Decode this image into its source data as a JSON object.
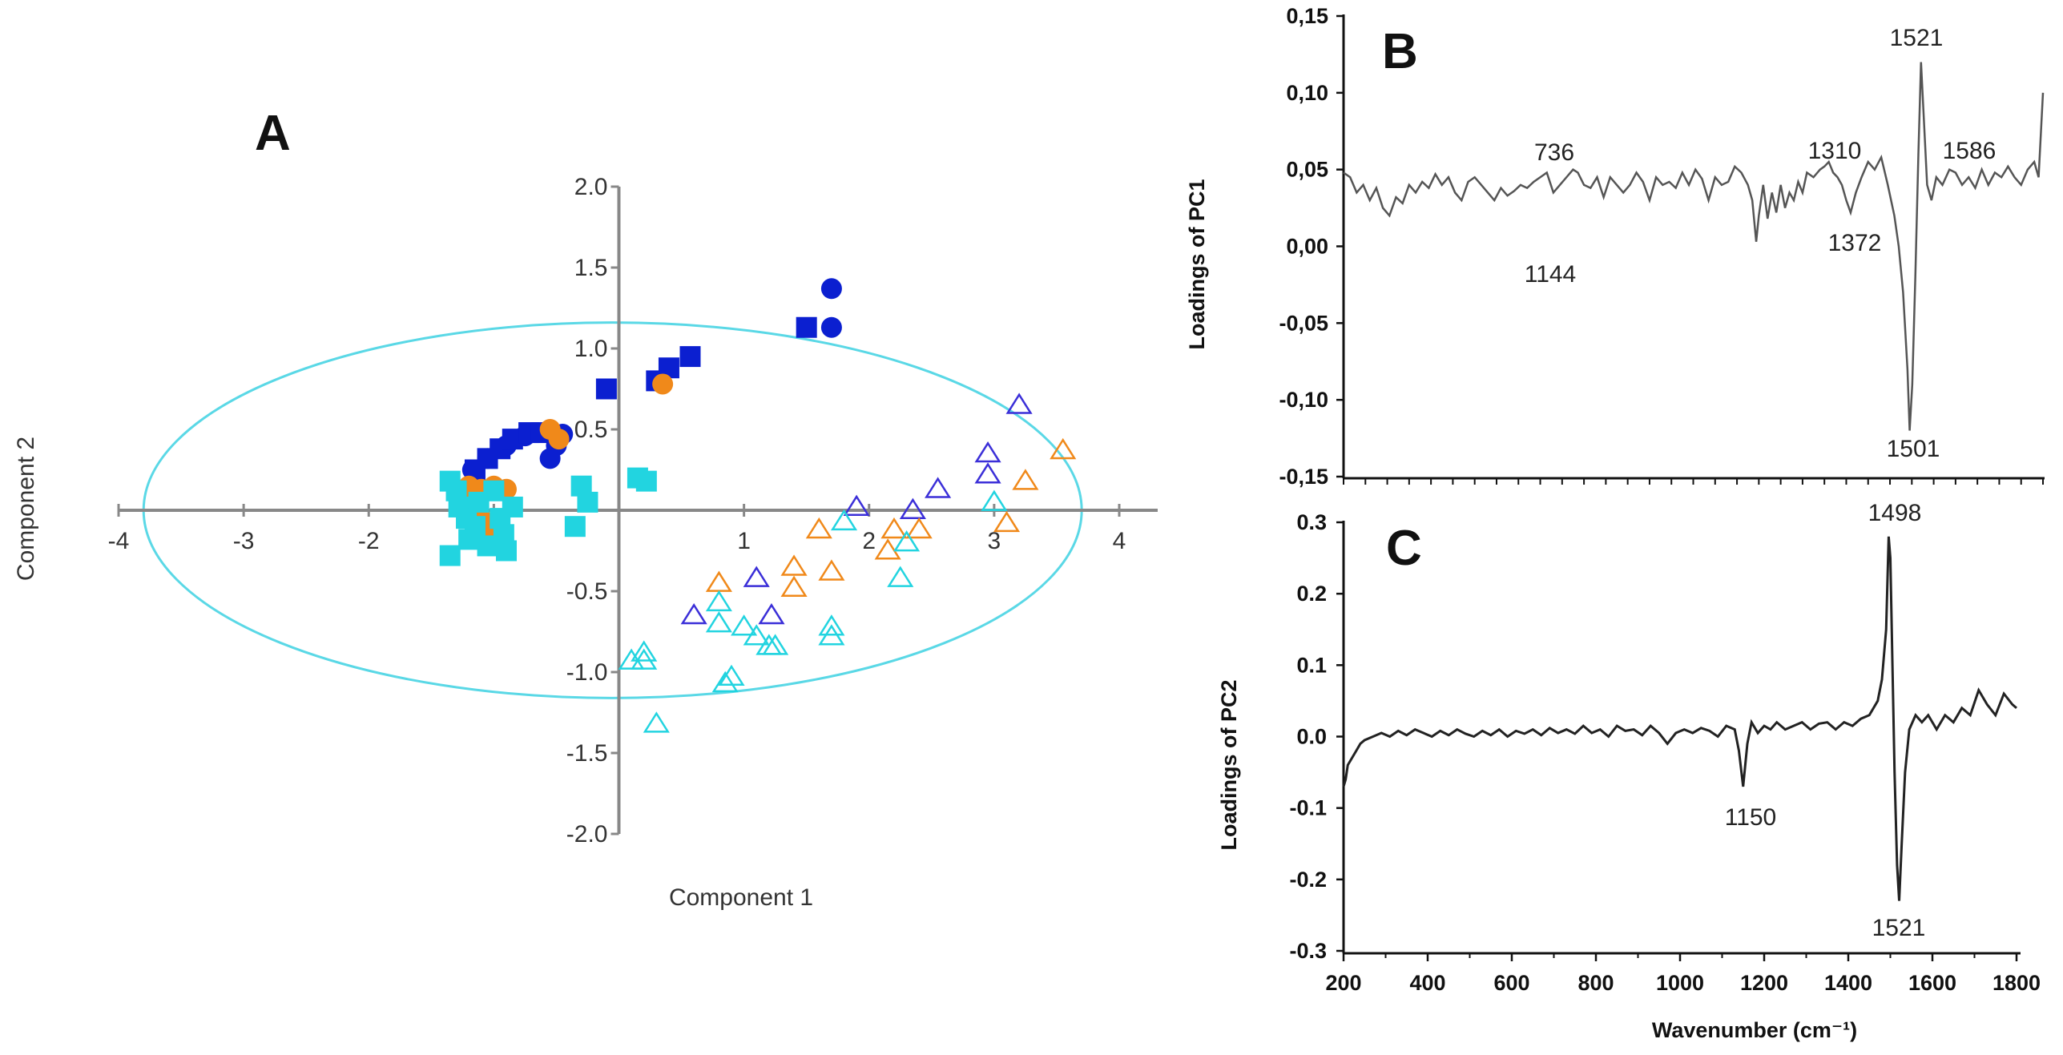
{
  "chart_data": [
    {
      "type": "scatter",
      "panel_label": "A",
      "xlabel": "Component 1",
      "ylabel": "Component 2",
      "xlim": [
        -4,
        4.3
      ],
      "ylim": [
        -2.0,
        2.0
      ],
      "x_ticks": [
        -4,
        -3,
        -2,
        -1,
        1,
        2,
        3,
        4
      ],
      "x_tick_labels": [
        "-4",
        "-3",
        "-2",
        "-1",
        "1",
        "2",
        "3",
        "4"
      ],
      "y_ticks": [
        2.0,
        1.5,
        1.0,
        0.5,
        -0.5,
        -1.0,
        -1.5,
        -2.0
      ],
      "y_tick_labels": [
        "2.0",
        "1.5",
        "1.0",
        "0.5",
        "-0.5",
        "-1.0",
        "-1.5",
        "-2.0"
      ],
      "ellipse": {
        "cx": -0.05,
        "cy": 0.0,
        "rx": 3.75,
        "ry": 1.16,
        "color": "#5ad8e6"
      },
      "series": [
        {
          "name": "blue-circle",
          "marker": "circle",
          "filled": true,
          "color": "#0b1fd0",
          "points": [
            [
              1.7,
              1.37
            ],
            [
              1.7,
              1.13
            ],
            [
              -1.17,
              0.25
            ],
            [
              -1.05,
              0.32
            ],
            [
              -0.9,
              0.4
            ],
            [
              -0.75,
              0.46
            ],
            [
              -0.6,
              0.48
            ],
            [
              -0.45,
              0.47
            ],
            [
              -0.5,
              0.4
            ],
            [
              -0.55,
              0.32
            ]
          ]
        },
        {
          "name": "blue-square",
          "marker": "square",
          "filled": true,
          "color": "#0b1fd0",
          "points": [
            [
              1.5,
              1.13
            ],
            [
              0.57,
              0.95
            ],
            [
              0.4,
              0.88
            ],
            [
              0.3,
              0.8
            ],
            [
              -0.1,
              0.75
            ],
            [
              -1.15,
              0.25
            ],
            [
              -1.05,
              0.32
            ],
            [
              -0.95,
              0.38
            ],
            [
              -0.85,
              0.44
            ],
            [
              -0.72,
              0.48
            ],
            [
              -0.62,
              0.48
            ]
          ]
        },
        {
          "name": "orange-circle",
          "marker": "circle",
          "filled": true,
          "color": "#f0891a",
          "points": [
            [
              -0.55,
              0.5
            ],
            [
              -0.48,
              0.44
            ],
            [
              0.35,
              0.78
            ],
            [
              -1.2,
              0.15
            ],
            [
              -1.1,
              0.13
            ],
            [
              -1.0,
              0.15
            ],
            [
              -0.9,
              0.13
            ],
            [
              -1.1,
              -0.05
            ],
            [
              -1.05,
              -0.12
            ],
            [
              -1.2,
              0.05
            ]
          ]
        },
        {
          "name": "cyan-square",
          "marker": "square",
          "filled": true,
          "color": "#22d4e0",
          "points": [
            [
              -1.35,
              0.18
            ],
            [
              -1.3,
              0.12
            ],
            [
              -1.28,
              0.02
            ],
            [
              -1.22,
              -0.05
            ],
            [
              -1.15,
              -0.1
            ],
            [
              -1.2,
              -0.18
            ],
            [
              -1.35,
              -0.28
            ],
            [
              -1.05,
              -0.22
            ],
            [
              -0.9,
              -0.25
            ],
            [
              -0.92,
              -0.15
            ],
            [
              -1.12,
              0.05
            ],
            [
              -0.85,
              0.02
            ],
            [
              -0.95,
              -0.05
            ],
            [
              -0.3,
              0.15
            ],
            [
              -0.25,
              0.05
            ],
            [
              -0.35,
              -0.1
            ],
            [
              0.15,
              0.2
            ],
            [
              0.22,
              0.18
            ],
            [
              -1.0,
              0.12
            ]
          ]
        },
        {
          "name": "blue-triangle",
          "marker": "triangle",
          "filled": false,
          "color": "#3b2fd8",
          "points": [
            [
              3.2,
              0.65
            ],
            [
              2.95,
              0.35
            ],
            [
              2.95,
              0.22
            ],
            [
              2.55,
              0.13
            ],
            [
              2.35,
              0.0
            ],
            [
              1.9,
              0.02
            ],
            [
              1.1,
              -0.42
            ],
            [
              1.22,
              -0.65
            ],
            [
              0.6,
              -0.65
            ]
          ]
        },
        {
          "name": "orange-triangle",
          "marker": "triangle",
          "filled": false,
          "color": "#f0891a",
          "points": [
            [
              3.55,
              0.37
            ],
            [
              3.25,
              0.18
            ],
            [
              3.1,
              -0.08
            ],
            [
              2.4,
              -0.12
            ],
            [
              2.2,
              -0.12
            ],
            [
              2.15,
              -0.25
            ],
            [
              1.6,
              -0.12
            ],
            [
              1.4,
              -0.35
            ],
            [
              1.4,
              -0.48
            ],
            [
              1.7,
              -0.38
            ],
            [
              0.8,
              -0.45
            ]
          ]
        },
        {
          "name": "cyan-triangle",
          "marker": "triangle",
          "filled": false,
          "color": "#22d4e0",
          "points": [
            [
              3.0,
              0.05
            ],
            [
              1.8,
              -0.07
            ],
            [
              2.3,
              -0.2
            ],
            [
              2.25,
              -0.42
            ],
            [
              1.7,
              -0.72
            ],
            [
              1.7,
              -0.78
            ],
            [
              0.8,
              -0.57
            ],
            [
              0.8,
              -0.7
            ],
            [
              1.0,
              -0.72
            ],
            [
              1.1,
              -0.78
            ],
            [
              1.2,
              -0.84
            ],
            [
              1.25,
              -0.84
            ],
            [
              0.9,
              -1.03
            ],
            [
              0.85,
              -1.07
            ],
            [
              0.2,
              -0.88
            ],
            [
              0.2,
              -0.93
            ],
            [
              0.1,
              -0.93
            ],
            [
              0.3,
              -1.32
            ]
          ]
        }
      ]
    },
    {
      "type": "line",
      "panel_label": "B",
      "ylabel": "Loadings of PC1",
      "xlim": [
        200,
        1800
      ],
      "ylim": [
        -0.15,
        0.15
      ],
      "y_ticks": [
        0.15,
        0.1,
        0.05,
        0.0,
        -0.05,
        -0.1,
        -0.15
      ],
      "y_tick_labels": [
        "0,15",
        "0,10",
        "0,05",
        "0,00",
        "-0,05",
        "-0,10",
        "-0,15"
      ],
      "annotations": [
        "736",
        "1144",
        "1310",
        "1372",
        "1521",
        "1501",
        "1586"
      ],
      "color": "#555555",
      "x": [
        200,
        215,
        230,
        245,
        260,
        275,
        290,
        305,
        320,
        335,
        350,
        365,
        380,
        395,
        410,
        425,
        440,
        455,
        470,
        485,
        500,
        515,
        530,
        545,
        560,
        575,
        590,
        605,
        620,
        635,
        650,
        665,
        680,
        695,
        710,
        725,
        736,
        750,
        765,
        780,
        795,
        810,
        825,
        840,
        855,
        870,
        885,
        900,
        915,
        930,
        945,
        960,
        975,
        990,
        1005,
        1020,
        1035,
        1050,
        1065,
        1080,
        1095,
        1110,
        1125,
        1135,
        1144,
        1150,
        1160,
        1170,
        1180,
        1190,
        1200,
        1210,
        1220,
        1230,
        1240,
        1250,
        1260,
        1275,
        1290,
        1300,
        1310,
        1320,
        1330,
        1340,
        1350,
        1360,
        1372,
        1385,
        1400,
        1415,
        1430,
        1445,
        1460,
        1470,
        1480,
        1490,
        1495,
        1501,
        1508,
        1515,
        1521,
        1528,
        1535,
        1545,
        1556,
        1570,
        1586,
        1600,
        1615,
        1630,
        1645,
        1660,
        1675,
        1690,
        1705,
        1720,
        1735,
        1750,
        1765,
        1780,
        1790,
        1800
      ],
      "values": [
        0.048,
        0.045,
        0.035,
        0.04,
        0.03,
        0.038,
        0.025,
        0.02,
        0.032,
        0.028,
        0.04,
        0.035,
        0.042,
        0.038,
        0.047,
        0.04,
        0.045,
        0.035,
        0.03,
        0.042,
        0.045,
        0.04,
        0.035,
        0.03,
        0.038,
        0.033,
        0.036,
        0.04,
        0.038,
        0.042,
        0.045,
        0.048,
        0.035,
        0.04,
        0.045,
        0.05,
        0.048,
        0.04,
        0.038,
        0.045,
        0.032,
        0.045,
        0.04,
        0.035,
        0.04,
        0.048,
        0.042,
        0.03,
        0.045,
        0.04,
        0.042,
        0.038,
        0.048,
        0.04,
        0.05,
        0.044,
        0.03,
        0.045,
        0.04,
        0.042,
        0.052,
        0.048,
        0.04,
        0.03,
        0.003,
        0.02,
        0.04,
        0.018,
        0.035,
        0.022,
        0.04,
        0.025,
        0.035,
        0.03,
        0.042,
        0.035,
        0.048,
        0.045,
        0.05,
        0.052,
        0.055,
        0.048,
        0.045,
        0.04,
        0.03,
        0.022,
        0.035,
        0.045,
        0.055,
        0.05,
        0.058,
        0.04,
        0.02,
        0.0,
        -0.03,
        -0.08,
        -0.12,
        -0.09,
        -0.02,
        0.06,
        0.12,
        0.08,
        0.04,
        0.03,
        0.045,
        0.04,
        0.05,
        0.048,
        0.04,
        0.045,
        0.038,
        0.05,
        0.04,
        0.048,
        0.045,
        0.052,
        0.045,
        0.04,
        0.05,
        0.055,
        0.045,
        0.1
      ]
    },
    {
      "type": "line",
      "panel_label": "C",
      "xlabel": "Wavenumber (cm⁻¹)",
      "ylabel": "Loadings of PC2",
      "xlim": [
        200,
        1800
      ],
      "ylim": [
        -0.3,
        0.3
      ],
      "x_ticks": [
        200,
        400,
        600,
        800,
        1000,
        1200,
        1400,
        1600,
        1800
      ],
      "x_tick_labels": [
        "200",
        "400",
        "600",
        "800",
        "1000",
        "1200",
        "1400",
        "1600",
        "1800"
      ],
      "y_ticks": [
        0.3,
        0.2,
        0.1,
        0.0,
        -0.1,
        -0.2,
        -0.3
      ],
      "y_tick_labels": [
        "0.3",
        "0.2",
        "0.1",
        "0.0",
        "-0.1",
        "-0.2",
        "-0.3"
      ],
      "annotations": [
        "1498",
        "1150",
        "1521"
      ],
      "color": "#222222",
      "x": [
        200,
        205,
        210,
        220,
        230,
        240,
        250,
        270,
        290,
        310,
        330,
        350,
        370,
        390,
        410,
        430,
        450,
        470,
        490,
        510,
        530,
        550,
        570,
        590,
        610,
        630,
        650,
        670,
        690,
        710,
        730,
        750,
        770,
        790,
        810,
        830,
        850,
        870,
        890,
        910,
        930,
        950,
        970,
        990,
        1010,
        1030,
        1050,
        1070,
        1090,
        1110,
        1130,
        1140,
        1150,
        1160,
        1170,
        1185,
        1200,
        1215,
        1230,
        1250,
        1270,
        1290,
        1310,
        1330,
        1350,
        1370,
        1390,
        1410,
        1430,
        1450,
        1470,
        1480,
        1490,
        1496,
        1500,
        1505,
        1510,
        1516,
        1521,
        1527,
        1535,
        1545,
        1560,
        1575,
        1590,
        1610,
        1630,
        1650,
        1670,
        1690,
        1710,
        1730,
        1750,
        1770,
        1790,
        1800
      ],
      "values": [
        -0.07,
        -0.06,
        -0.04,
        -0.03,
        -0.02,
        -0.01,
        -0.005,
        0.0,
        0.005,
        0.0,
        0.008,
        0.002,
        0.01,
        0.005,
        0.0,
        0.008,
        0.002,
        0.01,
        0.004,
        0.0,
        0.008,
        0.002,
        0.01,
        0.0,
        0.008,
        0.004,
        0.01,
        0.002,
        0.012,
        0.005,
        0.01,
        0.004,
        0.015,
        0.005,
        0.01,
        0.0,
        0.015,
        0.008,
        0.01,
        0.002,
        0.015,
        0.005,
        -0.01,
        0.005,
        0.01,
        0.005,
        0.012,
        0.008,
        0.0,
        0.015,
        0.01,
        -0.02,
        -0.07,
        -0.01,
        0.02,
        0.005,
        0.015,
        0.01,
        0.02,
        0.01,
        0.015,
        0.02,
        0.01,
        0.018,
        0.02,
        0.01,
        0.02,
        0.015,
        0.025,
        0.03,
        0.05,
        0.08,
        0.15,
        0.28,
        0.25,
        0.1,
        -0.05,
        -0.18,
        -0.23,
        -0.15,
        -0.05,
        0.01,
        0.03,
        0.02,
        0.03,
        0.01,
        0.03,
        0.02,
        0.04,
        0.03,
        0.065,
        0.045,
        0.03,
        0.06,
        0.045,
        0.04
      ]
    }
  ]
}
